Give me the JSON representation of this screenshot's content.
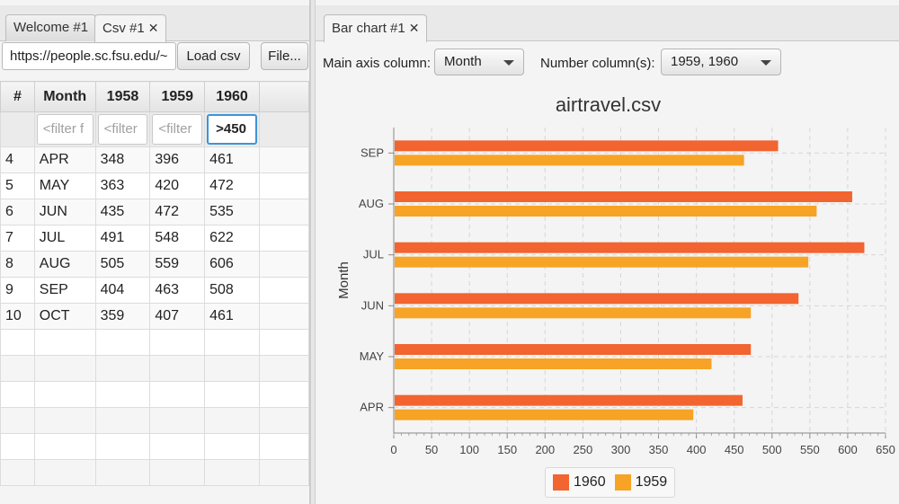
{
  "left_panel": {
    "tabs": [
      {
        "label": "Welcome #1",
        "closable": false,
        "active": false
      },
      {
        "label": "Csv #1",
        "closable": true,
        "active": true
      }
    ],
    "url_value": "https://people.sc.fsu.edu/~",
    "load_button": "Load csv",
    "file_button": "File...",
    "table": {
      "columns": [
        "#",
        "Month",
        "1958",
        "1959",
        "1960"
      ],
      "filters": [
        "",
        "<filter f",
        "<filter",
        "<filter",
        ">450"
      ],
      "rows": [
        [
          "4",
          "APR",
          "348",
          "396",
          "461"
        ],
        [
          "5",
          "MAY",
          "363",
          "420",
          "472"
        ],
        [
          "6",
          "JUN",
          "435",
          "472",
          "535"
        ],
        [
          "7",
          "JUL",
          "491",
          "548",
          "622"
        ],
        [
          "8",
          "AUG",
          "505",
          "559",
          "606"
        ],
        [
          "9",
          "SEP",
          "404",
          "463",
          "508"
        ],
        [
          "10",
          "OCT",
          "359",
          "407",
          "461"
        ]
      ]
    }
  },
  "right_panel": {
    "tab": {
      "label": "Bar chart #1",
      "closable": true
    },
    "main_axis_label": "Main axis column:",
    "main_axis_value": "Month",
    "number_columns_label": "Number column(s):",
    "number_columns_value": "1959, 1960",
    "close_glyph": "✕"
  },
  "chart_data": {
    "type": "bar",
    "orientation": "horizontal",
    "title": "airtravel.csv",
    "ylabel": "Month",
    "xlabel": "",
    "categories": [
      "APR",
      "MAY",
      "JUN",
      "JUL",
      "AUG",
      "SEP"
    ],
    "series": [
      {
        "name": "1960",
        "color": "#f26430",
        "values": [
          461,
          472,
          535,
          622,
          606,
          508
        ]
      },
      {
        "name": "1959",
        "color": "#f7a325",
        "values": [
          396,
          420,
          472,
          548,
          559,
          463
        ]
      }
    ],
    "xlim": [
      0,
      650
    ],
    "x_ticks": [
      0,
      50,
      100,
      150,
      200,
      250,
      300,
      350,
      400,
      450,
      500,
      550,
      600,
      650
    ],
    "grid": true,
    "legend_position": "bottom"
  }
}
